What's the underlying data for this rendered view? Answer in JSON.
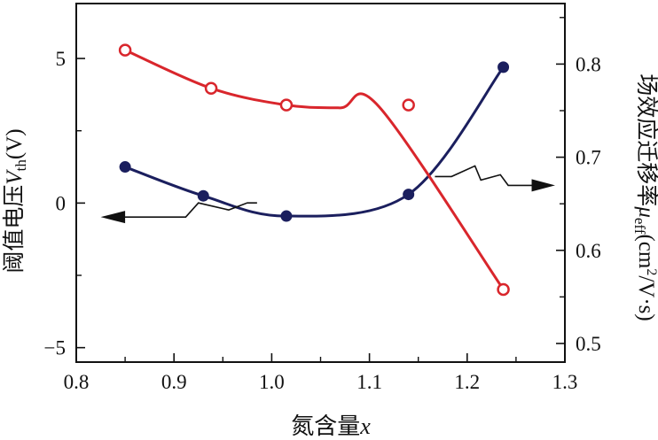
{
  "chart_data": {
    "type": "line",
    "title": "",
    "xlabel": "氮含量",
    "xlabel_var": "x",
    "ylabel_left": {
      "prefix": "阈值电压",
      "var": "V",
      "sub": "th",
      "unit": "(V)"
    },
    "ylabel_right": {
      "prefix": "场效应迁移率",
      "var": "μ",
      "sub": "eff",
      "unit_a": "(cm",
      "unit_sup": "2",
      "unit_b": "/V·s)"
    },
    "xlim": [
      0.8,
      1.3
    ],
    "ylim_left": [
      -5.5,
      6.9
    ],
    "ylim_right": [
      0.48,
      0.865
    ],
    "x_ticks": [
      "0.8",
      "0.9",
      "1.0",
      "1.1",
      "1.2",
      "1.3"
    ],
    "y_left_ticks": [
      "−5",
      "0",
      "5"
    ],
    "y_right_ticks": [
      "0.5",
      "0.6",
      "0.7",
      "0.8"
    ],
    "grid": false,
    "series": [
      {
        "axis": "left",
        "color": "#1b1f5e",
        "marker": "filled-circle",
        "x": [
          0.85,
          0.93,
          1.015,
          1.14,
          1.237
        ],
        "y": [
          1.25,
          0.25,
          -0.45,
          0.3,
          4.7
        ]
      },
      {
        "axis": "right",
        "color": "#d9262c",
        "marker": "open-circle",
        "x": [
          0.85,
          0.938,
          1.015,
          1.14,
          1.237
        ],
        "y": [
          0.815,
          0.774,
          0.756,
          0.756,
          0.558
        ]
      }
    ],
    "annotations": [
      {
        "kind": "left-pointing arrow",
        "target": "left axis"
      },
      {
        "kind": "right-pointing arrow",
        "target": "right axis"
      }
    ]
  }
}
